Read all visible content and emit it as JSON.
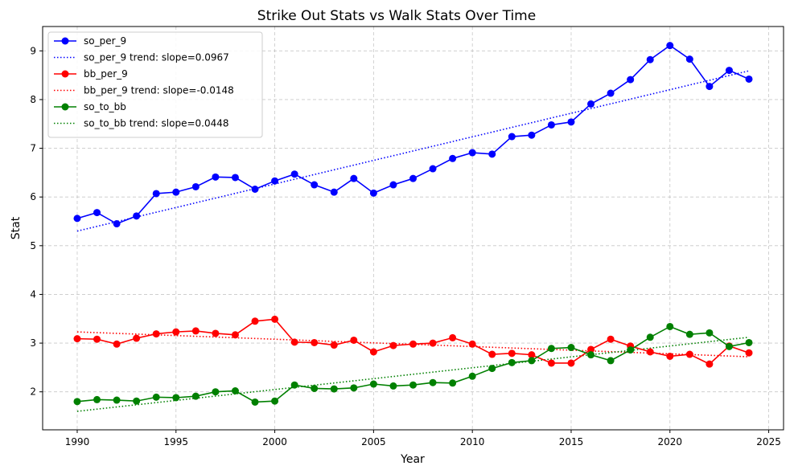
{
  "chart_data": {
    "type": "line",
    "title": "Strike Out Stats vs Walk Stats Over Time",
    "xlabel": "Year",
    "ylabel": "Stat",
    "xlim": [
      1988.25,
      2025.75
    ],
    "ylim": [
      1.22,
      9.5
    ],
    "xticks": [
      1990,
      1995,
      2000,
      2005,
      2010,
      2015,
      2020,
      2025
    ],
    "yticks": [
      2,
      3,
      4,
      5,
      6,
      7,
      8,
      9
    ],
    "grid": true,
    "legend_position": "top-left",
    "x": [
      1990,
      1991,
      1992,
      1993,
      1994,
      1995,
      1996,
      1997,
      1998,
      1999,
      2000,
      2001,
      2002,
      2003,
      2004,
      2005,
      2006,
      2007,
      2008,
      2009,
      2010,
      2011,
      2012,
      2013,
      2014,
      2015,
      2016,
      2017,
      2018,
      2019,
      2020,
      2021,
      2022,
      2023,
      2024
    ],
    "series": [
      {
        "name": "so_per_9",
        "color": "#0000ff",
        "values": [
          5.56,
          5.68,
          5.45,
          5.61,
          6.07,
          6.1,
          6.21,
          6.41,
          6.4,
          6.16,
          6.33,
          6.47,
          6.25,
          6.1,
          6.38,
          6.08,
          6.25,
          6.38,
          6.58,
          6.79,
          6.91,
          6.88,
          7.24,
          7.27,
          7.48,
          7.54,
          7.91,
          8.13,
          8.41,
          8.82,
          9.11,
          8.83,
          8.27,
          8.6,
          8.42
        ],
        "trend": {
          "name": "so_per_9 trend: slope=0.0967",
          "start": [
            1990,
            5.3
          ],
          "end": [
            2024,
            8.59
          ]
        }
      },
      {
        "name": "bb_per_9",
        "color": "#ff0000",
        "values": [
          3.09,
          3.08,
          2.98,
          3.1,
          3.19,
          3.23,
          3.25,
          3.2,
          3.17,
          3.45,
          3.49,
          3.02,
          3.01,
          2.96,
          3.06,
          2.82,
          2.95,
          2.98,
          3.0,
          3.11,
          2.98,
          2.77,
          2.79,
          2.76,
          2.59,
          2.59,
          2.87,
          3.08,
          2.94,
          2.82,
          2.73,
          2.77,
          2.57,
          2.94,
          2.8
        ],
        "trend": {
          "name": "bb_per_9 trend: slope=-0.0148",
          "start": [
            1990,
            3.23
          ],
          "end": [
            2024,
            2.72
          ]
        }
      },
      {
        "name": "so_to_bb",
        "color": "#008000",
        "values": [
          1.8,
          1.84,
          1.83,
          1.81,
          1.89,
          1.88,
          1.91,
          2.0,
          2.02,
          1.79,
          1.81,
          2.14,
          2.07,
          2.06,
          2.08,
          2.16,
          2.12,
          2.14,
          2.19,
          2.18,
          2.32,
          2.48,
          2.6,
          2.64,
          2.89,
          2.91,
          2.76,
          2.64,
          2.86,
          3.12,
          3.34,
          3.18,
          3.21,
          2.93,
          3.01
        ],
        "trend": {
          "name": "so_to_bb trend: slope=0.0448",
          "start": [
            1990,
            1.6
          ],
          "end": [
            2024,
            3.12
          ]
        }
      }
    ]
  }
}
